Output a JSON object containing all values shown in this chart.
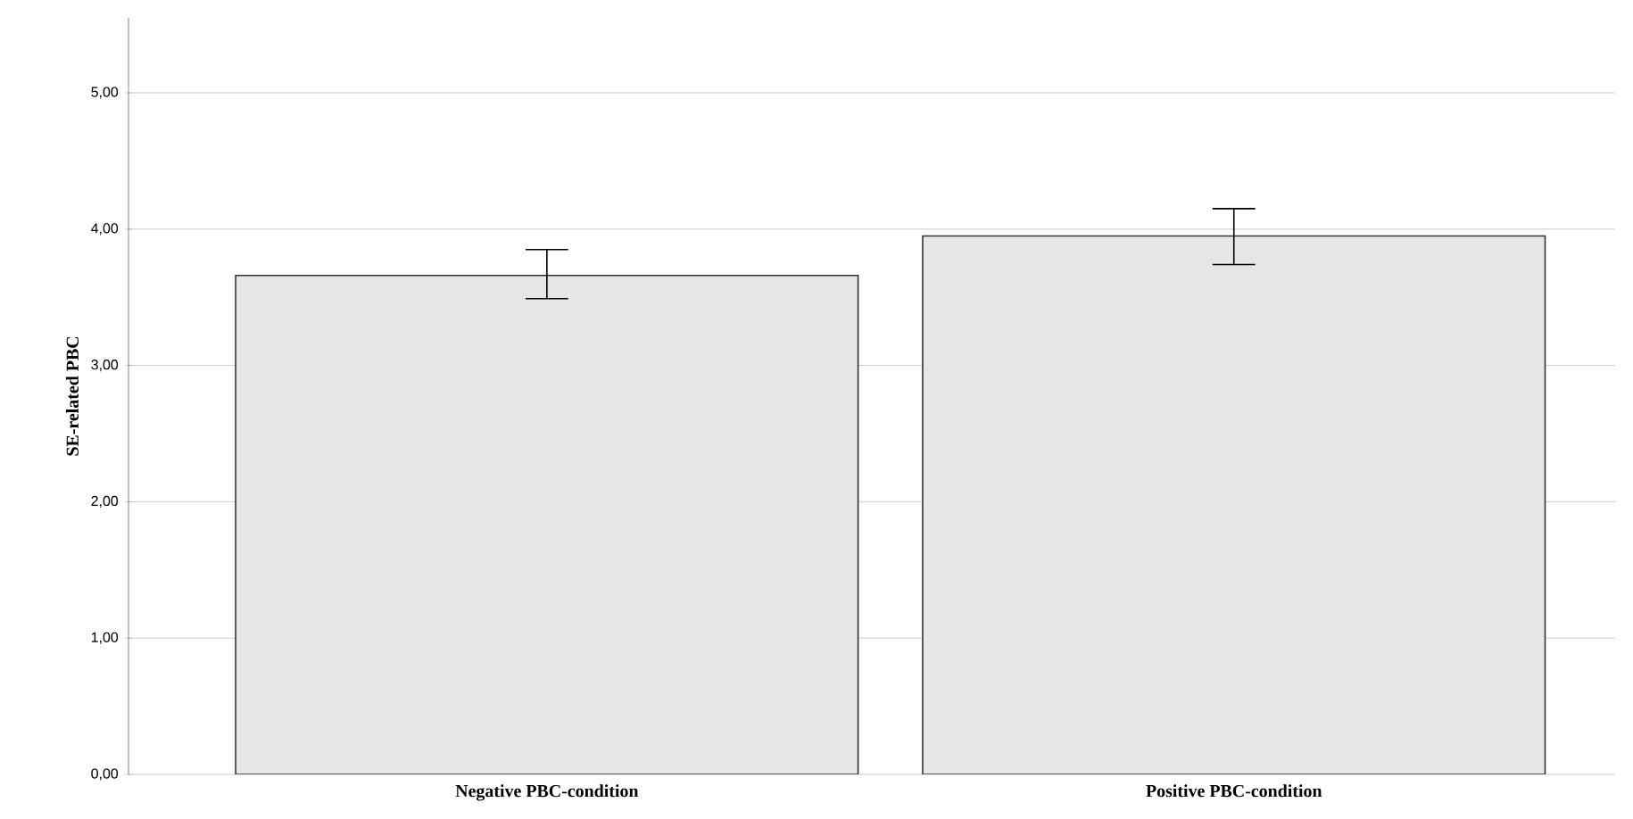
{
  "chart_data": {
    "type": "bar",
    "ylabel": "SE-related PBC",
    "categories": [
      "Negative PBC-condition",
      "Positive PBC-condition"
    ],
    "values": [
      3.66,
      3.95
    ],
    "errors": [
      [
        3.49,
        3.85
      ],
      [
        3.74,
        4.15
      ]
    ],
    "color": "#e6e6e6",
    "ylim": [
      0,
      5.55
    ],
    "yticks": [
      {
        "value": 0,
        "label": "0,00"
      },
      {
        "value": 1,
        "label": "1,00"
      },
      {
        "value": 2,
        "label": "2,00"
      },
      {
        "value": 3,
        "label": "3,00"
      },
      {
        "value": 4,
        "label": "4,00"
      },
      {
        "value": 5,
        "label": "5,00"
      }
    ],
    "grid": "y"
  }
}
